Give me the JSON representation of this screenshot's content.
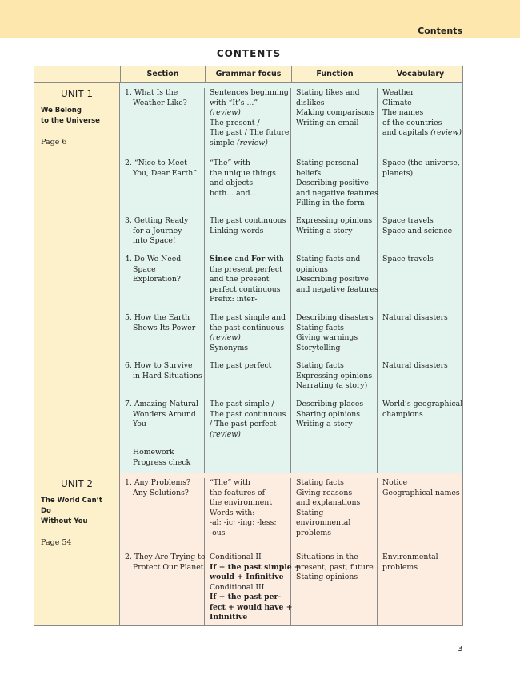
{
  "header": {
    "running_title": "Contents"
  },
  "title": "CONTENTS",
  "columns": [
    "",
    "Section",
    "Grammar focus",
    "Function",
    "Vocabulary"
  ],
  "colors": {
    "band": "#fde7ad",
    "unit_cell": "#fdf1cc",
    "unit1_rows": "#e3f4ef",
    "unit2_rows": "#fdede1"
  },
  "units": [
    {
      "name": "UNIT 1",
      "title": [
        "We Belong",
        "to the Universe"
      ],
      "page": "Page 6",
      "rows": [
        {
          "section": [
            "1. What Is the",
            "Weather Like?"
          ],
          "grammar": [
            [
              [
                "Sentences beginning",
                ""
              ]
            ],
            [
              [
                "with “It’s ...”",
                ""
              ]
            ],
            [
              [
                "(review)",
                "i"
              ]
            ],
            [
              [
                "The present /",
                ""
              ]
            ],
            [
              [
                "The past / The future",
                ""
              ]
            ],
            [
              [
                "simple ",
                ""
              ],
              [
                "(review)",
                "i"
              ]
            ]
          ],
          "function": [
            "Stating likes and",
            "dislikes",
            "Making comparisons",
            "Writing an email"
          ],
          "vocabulary": [
            [
              [
                "Weather",
                ""
              ]
            ],
            [
              [
                "Climate",
                ""
              ]
            ],
            [
              [
                "The names",
                ""
              ]
            ],
            [
              [
                "of the countries",
                ""
              ]
            ],
            [
              [
                "and capitals ",
                ""
              ],
              [
                "(review)",
                "i"
              ]
            ]
          ]
        },
        {
          "section": [
            "2. “Nice to Meet",
            "You, Dear Earth”"
          ],
          "grammar": [
            [
              [
                "“The” with",
                ""
              ]
            ],
            [
              [
                "the unique things",
                ""
              ]
            ],
            [
              [
                "and objects",
                ""
              ]
            ],
            [
              [
                "both... and...",
                ""
              ]
            ]
          ],
          "function": [
            "Stating personal",
            "beliefs",
            "Describing positive",
            "and negative features",
            "Filling in the form"
          ],
          "vocabulary": [
            [
              [
                "Space (the universe,",
                ""
              ]
            ],
            [
              [
                "planets)",
                ""
              ]
            ]
          ]
        },
        {
          "section": [
            "3. Getting Ready",
            "for a Journey",
            "into Space!"
          ],
          "grammar": [
            [
              [
                "The past continuous",
                ""
              ]
            ],
            [
              [
                "Linking words",
                ""
              ]
            ]
          ],
          "function": [
            "Expressing opinions",
            "Writing a story"
          ],
          "vocabulary": [
            [
              [
                "Space travels",
                ""
              ]
            ],
            [
              [
                "Space and science",
                ""
              ]
            ]
          ]
        },
        {
          "section": [
            "4. Do We Need",
            "Space",
            "Exploration?"
          ],
          "grammar": [
            [
              [
                "Since",
                "b"
              ],
              [
                " and ",
                ""
              ],
              [
                "For",
                "b"
              ],
              [
                " with",
                ""
              ]
            ],
            [
              [
                "the present perfect",
                ""
              ]
            ],
            [
              [
                "and the present",
                ""
              ]
            ],
            [
              [
                "perfect continuous",
                ""
              ]
            ],
            [
              [
                "Prefix: inter-",
                ""
              ]
            ]
          ],
          "function": [
            "Stating facts and",
            "opinions",
            "Describing positive",
            "and negative features"
          ],
          "vocabulary": [
            [
              [
                "Space travels",
                ""
              ]
            ]
          ]
        },
        {
          "section": [
            "5. How the Earth",
            "Shows Its Power"
          ],
          "grammar": [
            [
              [
                "The past simple and",
                ""
              ]
            ],
            [
              [
                "the past continuous",
                ""
              ]
            ],
            [
              [
                "(review)",
                "i"
              ]
            ],
            [
              [
                "Synonyms",
                ""
              ]
            ]
          ],
          "function": [
            "Describing disasters",
            "Stating facts",
            "Giving warnings",
            "Storytelling"
          ],
          "vocabulary": [
            [
              [
                "Natural disasters",
                ""
              ]
            ]
          ]
        },
        {
          "section": [
            "6. How to Survive",
            "in Hard Situations"
          ],
          "grammar": [
            [
              [
                "The past perfect",
                ""
              ]
            ]
          ],
          "function": [
            "Stating facts",
            "Expressing opinions",
            "Narrating (a story)"
          ],
          "vocabulary": [
            [
              [
                "Natural disasters",
                ""
              ]
            ]
          ]
        },
        {
          "section": [
            "7. Amazing Natural",
            "Wonders Around",
            "You"
          ],
          "grammar": [
            [
              [
                "The past simple /",
                ""
              ]
            ],
            [
              [
                "The past continuous",
                ""
              ]
            ],
            [
              [
                "/ The past perfect",
                ""
              ]
            ],
            [
              [
                "(review)",
                "i"
              ]
            ]
          ],
          "function": [
            "Describing places",
            "Sharing opinions",
            "Writing a story"
          ],
          "vocabulary": [
            [
              [
                "World’s geographical",
                ""
              ]
            ],
            [
              [
                "champions",
                ""
              ]
            ]
          ]
        },
        {
          "section": [
            "Homework",
            "Progress check"
          ],
          "grammar": [],
          "function": [],
          "vocabulary": []
        }
      ]
    },
    {
      "name": "UNIT 2",
      "title": [
        "The World Can’t Do",
        "Without You"
      ],
      "page": "Page 54",
      "rows": [
        {
          "section": [
            "1. Any Problems?",
            "Any Solutions?"
          ],
          "grammar": [
            [
              [
                "“The” with",
                ""
              ]
            ],
            [
              [
                "the features of",
                ""
              ]
            ],
            [
              [
                "the environment",
                ""
              ]
            ],
            [
              [
                "Words with:",
                ""
              ]
            ],
            [
              [
                "-al; -ic; -ing; -less;",
                ""
              ]
            ],
            [
              [
                "-ous",
                ""
              ]
            ]
          ],
          "function": [
            "Stating facts",
            "Giving reasons",
            "and explanations",
            "Stating",
            "environmental",
            "problems"
          ],
          "vocabulary": [
            [
              [
                "Notice",
                ""
              ]
            ],
            [
              [
                "Geographical names",
                ""
              ]
            ]
          ]
        },
        {
          "section": [
            "2. They Are Trying to",
            "Protect Our Planet"
          ],
          "grammar": [
            [
              [
                "Conditional II",
                ""
              ]
            ],
            [
              [
                "If + the past simple +",
                "b"
              ]
            ],
            [
              [
                "would + Infinitive",
                "b"
              ]
            ],
            [
              [
                "Conditional III",
                ""
              ]
            ],
            [
              [
                "If + the past per-",
                "b"
              ]
            ],
            [
              [
                "fect + would have +",
                "b"
              ]
            ],
            [
              [
                "Infinitive",
                "b"
              ]
            ]
          ],
          "function": [
            "Situations in the",
            "present, past, future",
            "Stating opinions"
          ],
          "vocabulary": [
            [
              [
                "Environmental",
                ""
              ]
            ],
            [
              [
                "problems",
                ""
              ]
            ]
          ]
        }
      ]
    }
  ],
  "page_number": "3"
}
